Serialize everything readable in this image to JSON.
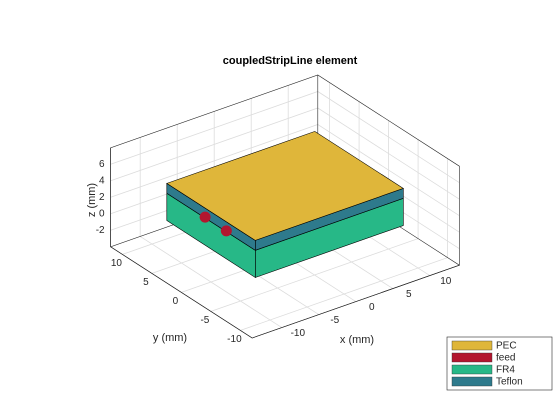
{
  "chart_data": {
    "type": "3d",
    "title": "coupledStripLine element",
    "x_label": "x (mm)",
    "y_label": "y (mm)",
    "z_label": "z (mm)",
    "xlim": [
      -14,
      14
    ],
    "ylim": [
      -12,
      12
    ],
    "zlim": [
      -4,
      8
    ],
    "xticks": [
      -10,
      -5,
      0,
      5,
      10
    ],
    "yticks": [
      -10,
      -5,
      0,
      5,
      10
    ],
    "zticks": [
      -2,
      0,
      2,
      4,
      6
    ],
    "grid": true,
    "legend_position": "southeast",
    "legend": [
      {
        "name": "PEC",
        "color": "#dfb63a"
      },
      {
        "name": "feed",
        "color": "#b3162f"
      },
      {
        "name": "FR4",
        "color": "#27b887"
      },
      {
        "name": "Teflon",
        "color": "#2e7a8c"
      }
    ]
  }
}
